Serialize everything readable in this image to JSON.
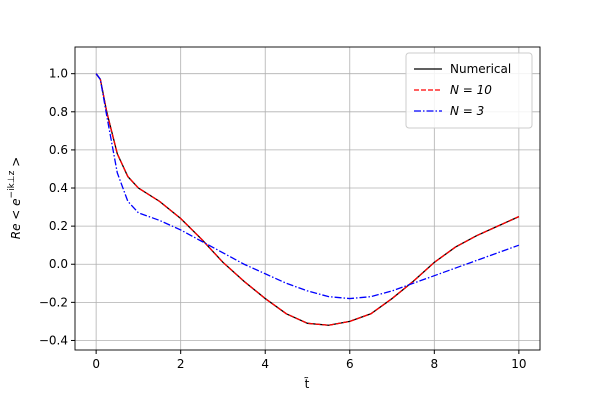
{
  "chart_data": {
    "type": "line",
    "xlabel": "t̃",
    "ylabel": [
      "Re < e",
      "−ik⊥z",
      " >"
    ],
    "x": [
      0,
      0.1,
      0.25,
      0.5,
      0.75,
      1,
      1.5,
      2,
      2.5,
      3,
      3.5,
      4,
      4.5,
      5,
      5.5,
      6,
      6.5,
      7,
      7.5,
      8,
      8.5,
      9,
      9.5,
      10
    ],
    "series": [
      {
        "name": "Numerical",
        "color": "#000000",
        "dash": "solid",
        "values": [
          1.0,
          0.97,
          0.8,
          0.58,
          0.46,
          0.4,
          0.33,
          0.24,
          0.13,
          0.01,
          -0.09,
          -0.18,
          -0.26,
          -0.31,
          -0.32,
          -0.3,
          -0.26,
          -0.18,
          -0.09,
          0.01,
          0.09,
          0.15,
          0.2,
          0.25
        ]
      },
      {
        "name": "N = 10",
        "color": "#ff0000",
        "dash": "dashed",
        "values": [
          1.0,
          0.97,
          0.8,
          0.58,
          0.46,
          0.4,
          0.33,
          0.24,
          0.13,
          0.01,
          -0.09,
          -0.18,
          -0.26,
          -0.31,
          -0.32,
          -0.3,
          -0.26,
          -0.18,
          -0.09,
          0.01,
          0.09,
          0.15,
          0.2,
          0.25
        ]
      },
      {
        "name": "N = 3",
        "color": "#0000ff",
        "dash": "dashdot",
        "values": [
          1.0,
          0.97,
          0.78,
          0.48,
          0.33,
          0.27,
          0.23,
          0.18,
          0.12,
          0.06,
          0.0,
          -0.05,
          -0.1,
          -0.14,
          -0.17,
          -0.18,
          -0.17,
          -0.14,
          -0.1,
          -0.06,
          -0.02,
          0.02,
          0.06,
          0.1
        ]
      }
    ],
    "xlim": [
      -0.5,
      10.5
    ],
    "xticks": [
      0,
      2,
      4,
      6,
      8,
      10
    ],
    "ylim": [
      -0.45,
      1.14
    ],
    "yticks": [
      {
        "value": -0.4,
        "label": "−0.4"
      },
      {
        "value": -0.2,
        "label": "−0.2"
      },
      {
        "value": 0,
        "label": "0.0"
      },
      {
        "value": 0.2,
        "label": "0.2"
      },
      {
        "value": 0.4,
        "label": "0.4"
      },
      {
        "value": 0.6,
        "label": "0.6"
      },
      {
        "value": 0.8,
        "label": "0.8"
      },
      {
        "value": 1.0,
        "label": "1.0"
      }
    ],
    "grid": true,
    "legend": "upper right"
  }
}
